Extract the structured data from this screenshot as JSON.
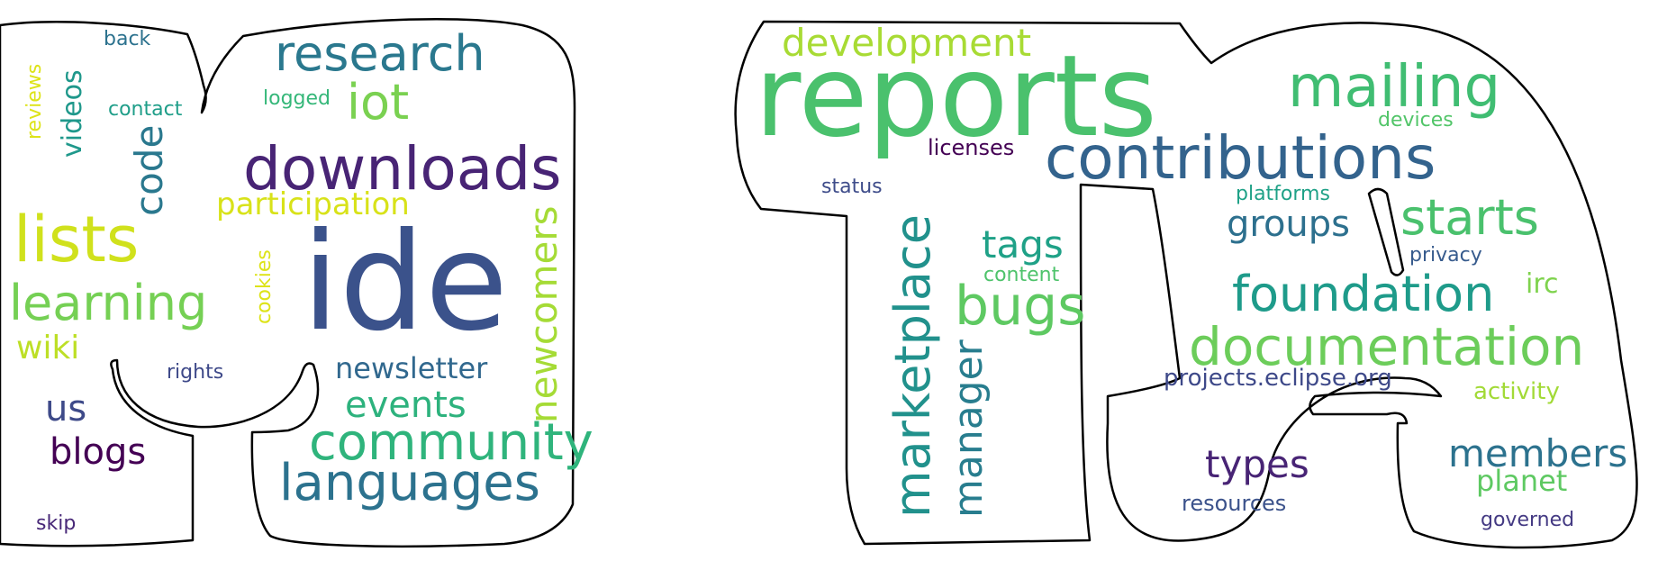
{
  "words": [
    {
      "text": "ide",
      "color": "#3b528b",
      "rotate": false
    },
    {
      "text": "downloads",
      "color": "#482475",
      "rotate": false
    },
    {
      "text": "research",
      "color": "#2a788e",
      "rotate": false
    },
    {
      "text": "iot",
      "color": "#7ad151",
      "rotate": false
    },
    {
      "text": "lists",
      "color": "#d0e11c",
      "rotate": false
    },
    {
      "text": "learning",
      "color": "#75d054",
      "rotate": false
    },
    {
      "text": "participation",
      "color": "#d8e219",
      "rotate": false
    },
    {
      "text": "code",
      "color": "#2a788e",
      "rotate": true
    },
    {
      "text": "videos",
      "color": "#1f988b",
      "rotate": true
    },
    {
      "text": "reviews",
      "color": "#dde318",
      "rotate": true
    },
    {
      "text": "back",
      "color": "#2c728e",
      "rotate": false
    },
    {
      "text": "contact",
      "color": "#1f9e89",
      "rotate": false
    },
    {
      "text": "logged",
      "color": "#35b779",
      "rotate": false
    },
    {
      "text": "cookies",
      "color": "#dde318",
      "rotate": true
    },
    {
      "text": "wiki",
      "color": "#bddf26",
      "rotate": false
    },
    {
      "text": "rights",
      "color": "#3e4989",
      "rotate": false
    },
    {
      "text": "us",
      "color": "#3e4a89",
      "rotate": false
    },
    {
      "text": "blogs",
      "color": "#440154",
      "rotate": false
    },
    {
      "text": "skip",
      "color": "#482878",
      "rotate": false
    },
    {
      "text": "newsletter",
      "color": "#31688e",
      "rotate": false
    },
    {
      "text": "events",
      "color": "#2db27d",
      "rotate": false
    },
    {
      "text": "community",
      "color": "#2fb47c",
      "rotate": false
    },
    {
      "text": "languages",
      "color": "#2c728e",
      "rotate": false
    },
    {
      "text": "newcomers",
      "color": "#a5db36",
      "rotate": true
    },
    {
      "text": "reports",
      "color": "#4ac16d",
      "rotate": false
    },
    {
      "text": "development",
      "color": "#a8db34",
      "rotate": false
    },
    {
      "text": "mailing",
      "color": "#40bd72",
      "rotate": false
    },
    {
      "text": "devices",
      "color": "#52c569",
      "rotate": false
    },
    {
      "text": "contributions",
      "color": "#33638d",
      "rotate": false
    },
    {
      "text": "licenses",
      "color": "#440154",
      "rotate": false
    },
    {
      "text": "status",
      "color": "#3e4c8a",
      "rotate": false
    },
    {
      "text": "marketplace",
      "color": "#21918c",
      "rotate": true
    },
    {
      "text": "manager",
      "color": "#287d8e",
      "rotate": true
    },
    {
      "text": "tags",
      "color": "#1fa187",
      "rotate": false
    },
    {
      "text": "content",
      "color": "#4ec36b",
      "rotate": false
    },
    {
      "text": "bugs",
      "color": "#5ec962",
      "rotate": false
    },
    {
      "text": "platforms",
      "color": "#1fa187",
      "rotate": false
    },
    {
      "text": "groups",
      "color": "#2d708e",
      "rotate": false
    },
    {
      "text": "starts",
      "color": "#4ac16d",
      "rotate": false
    },
    {
      "text": "privacy",
      "color": "#375b8d",
      "rotate": false
    },
    {
      "text": "foundation",
      "color": "#1e9b8a",
      "rotate": false
    },
    {
      "text": "irc",
      "color": "#7fd34e",
      "rotate": false
    },
    {
      "text": "documentation",
      "color": "#6ccd5a",
      "rotate": false
    },
    {
      "text": "projects.eclipse.org",
      "color": "#3e4989",
      "rotate": false
    },
    {
      "text": "activity",
      "color": "#a2da37",
      "rotate": false
    },
    {
      "text": "types",
      "color": "#482475",
      "rotate": false
    },
    {
      "text": "members",
      "color": "#2c728e",
      "rotate": false
    },
    {
      "text": "planet",
      "color": "#5ec962",
      "rotate": false
    },
    {
      "text": "resources",
      "color": "#3b528b",
      "rotate": false
    },
    {
      "text": "governed",
      "color": "#443a83",
      "rotate": false
    }
  ]
}
